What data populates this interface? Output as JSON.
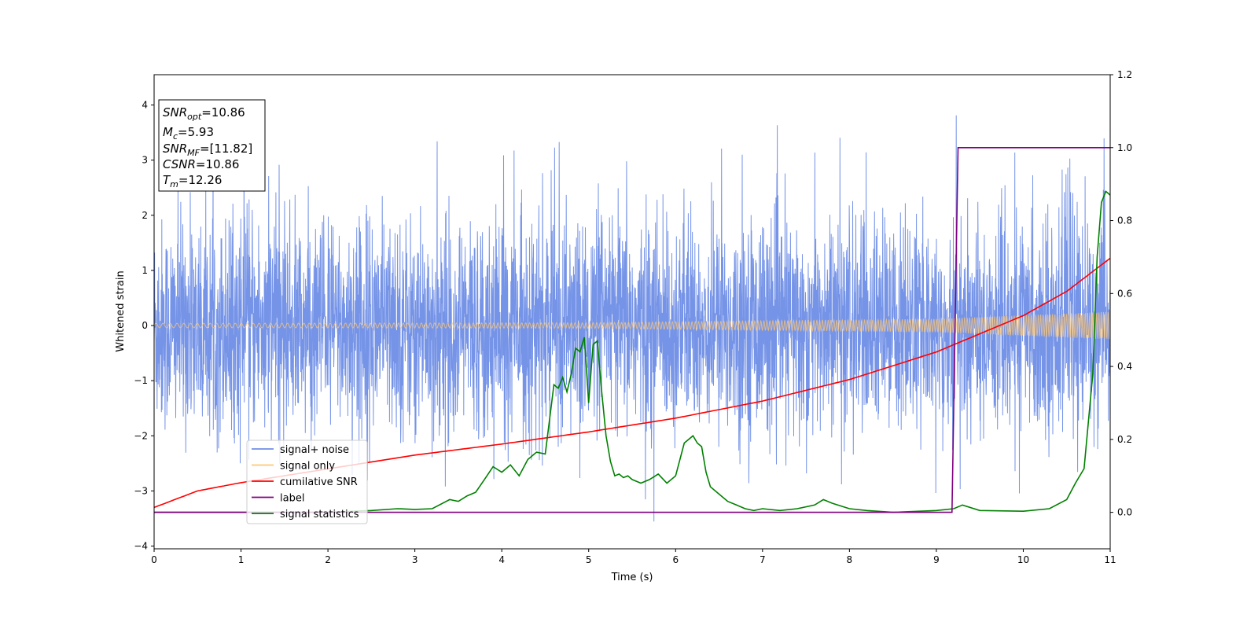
{
  "chart_data": {
    "type": "line",
    "xlabel": "Time (s)",
    "ylabel": "Whitened strain",
    "xlim": [
      0,
      11
    ],
    "ylim": [
      -4.05,
      4.55
    ],
    "y2lim": [
      -0.1,
      1.2
    ],
    "x_ticks": [
      "0",
      "1",
      "2",
      "3",
      "4",
      "5",
      "6",
      "7",
      "8",
      "9",
      "10",
      "11"
    ],
    "y_ticks": [
      "−4",
      "−3",
      "−2",
      "−1",
      "0",
      "1",
      "2",
      "3",
      "4"
    ],
    "y2_ticks": [
      "0.0",
      "0.2",
      "0.4",
      "0.6",
      "0.8",
      "1.0",
      "1.2"
    ],
    "grid": false,
    "legend_position": "lower-left",
    "annotation": [
      {
        "var": "SNR",
        "sub": "opt",
        "rest": "=10.86"
      },
      {
        "var": "M",
        "sub": "c",
        "rest": "=5.93"
      },
      {
        "var": "SNR",
        "sub": "MF",
        "rest": "=[11.82]"
      },
      {
        "var": "CSNR",
        "sub": "",
        "rest": "=10.86"
      },
      {
        "var": "T",
        "sub": "m",
        "rest": "=12.26"
      }
    ],
    "series": [
      {
        "name": "signal+ noise",
        "color": "#6f8ee6",
        "axis": "left",
        "description_values": {
          "t_range": [
            0,
            11
          ],
          "typical_range": [
            -2.5,
            2.5
          ],
          "peak_max": 4.2,
          "peak_min": -3.65
        }
      },
      {
        "name": "signal only",
        "color": "#ffc773",
        "axis": "left",
        "amplitude_envelope": {
          "t": [
            0,
            5,
            9,
            11
          ],
          "amp": [
            0.04,
            0.05,
            0.12,
            0.25
          ]
        }
      },
      {
        "name": "cumilative SNR",
        "color": "#ff0000",
        "axis": "left",
        "x": [
          0,
          0.5,
          1,
          2,
          3,
          4,
          5,
          6,
          7,
          8,
          9,
          10,
          10.5,
          11
        ],
        "y": [
          -3.3,
          -3.0,
          -2.85,
          -2.6,
          -2.35,
          -2.15,
          -1.93,
          -1.68,
          -1.37,
          -0.98,
          -0.48,
          0.18,
          0.62,
          1.22
        ]
      },
      {
        "name": "label",
        "color": "#800080",
        "axis": "right",
        "x": [
          0,
          9.18,
          9.25,
          11
        ],
        "y": [
          0.0,
          0.0,
          1.0,
          1.0
        ]
      },
      {
        "name": "signal statistics",
        "color": "#008000",
        "axis": "right",
        "x": [
          0,
          0.5,
          1,
          1.5,
          2,
          2.5,
          2.8,
          3.0,
          3.2,
          3.4,
          3.5,
          3.6,
          3.7,
          3.8,
          3.9,
          4.0,
          4.1,
          4.2,
          4.3,
          4.4,
          4.5,
          4.6,
          4.65,
          4.7,
          4.75,
          4.8,
          4.85,
          4.9,
          4.95,
          5.0,
          5.05,
          5.1,
          5.15,
          5.2,
          5.25,
          5.3,
          5.35,
          5.4,
          5.45,
          5.5,
          5.6,
          5.7,
          5.8,
          5.9,
          6.0,
          6.1,
          6.2,
          6.25,
          6.3,
          6.35,
          6.4,
          6.5,
          6.6,
          6.7,
          6.8,
          6.9,
          7.0,
          7.2,
          7.4,
          7.6,
          7.7,
          7.8,
          8.0,
          8.2,
          8.5,
          9.0,
          9.2,
          9.3,
          9.5,
          10.0,
          10.3,
          10.5,
          10.6,
          10.7,
          10.8,
          10.85,
          10.9,
          10.95,
          11.0
        ],
        "y": [
          0.0,
          0.0,
          0.0,
          0.0,
          0.0,
          0.005,
          0.01,
          0.008,
          0.01,
          0.035,
          0.03,
          0.045,
          0.055,
          0.09,
          0.125,
          0.11,
          0.13,
          0.1,
          0.145,
          0.165,
          0.16,
          0.35,
          0.34,
          0.37,
          0.33,
          0.38,
          0.45,
          0.44,
          0.48,
          0.3,
          0.46,
          0.47,
          0.33,
          0.21,
          0.14,
          0.1,
          0.105,
          0.095,
          0.1,
          0.09,
          0.08,
          0.09,
          0.105,
          0.08,
          0.1,
          0.19,
          0.21,
          0.19,
          0.18,
          0.11,
          0.07,
          0.05,
          0.03,
          0.02,
          0.01,
          0.005,
          0.01,
          0.005,
          0.01,
          0.02,
          0.035,
          0.025,
          0.01,
          0.005,
          0.0,
          0.005,
          0.01,
          0.02,
          0.005,
          0.003,
          0.01,
          0.035,
          0.08,
          0.12,
          0.38,
          0.7,
          0.85,
          0.88,
          0.87
        ]
      }
    ]
  }
}
